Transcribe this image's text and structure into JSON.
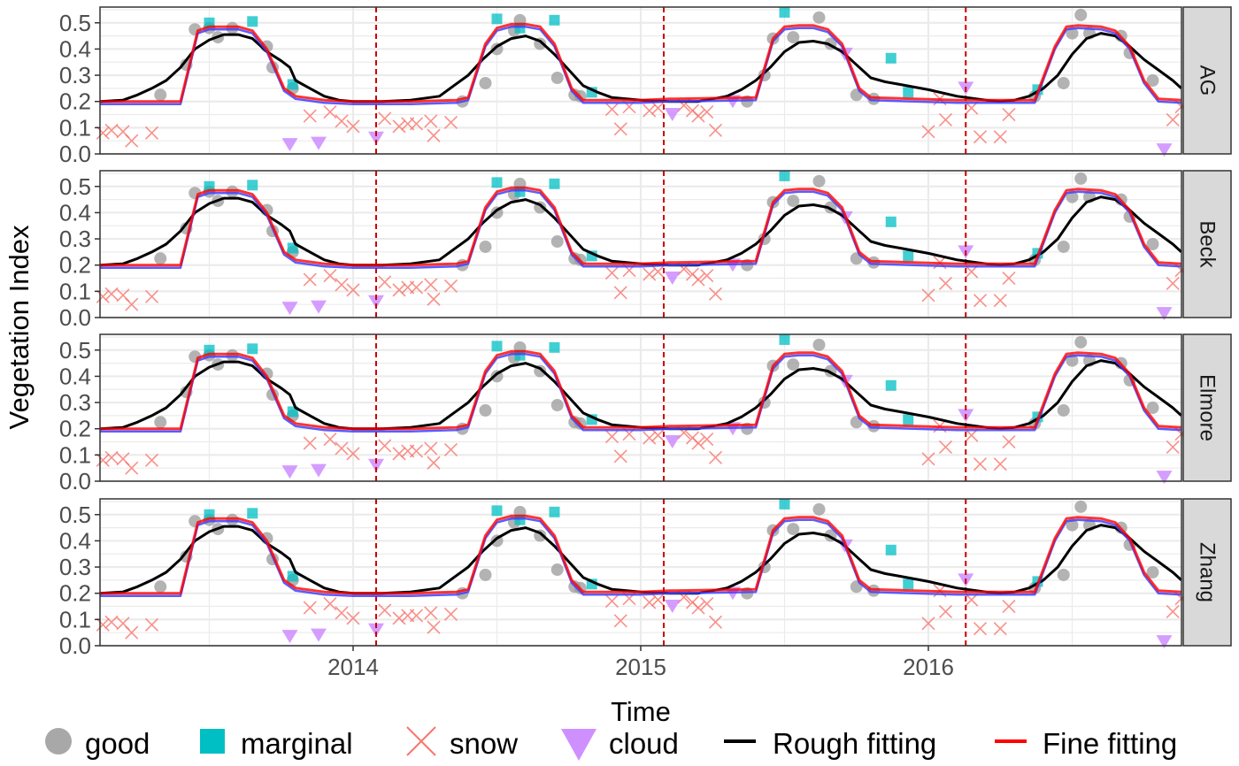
{
  "chart_data": {
    "type": "scatter",
    "xlabel": "Time",
    "ylabel": "Vegetation Index",
    "xlim": [
      2013.12,
      2016.88
    ],
    "ylim": [
      0,
      0.56
    ],
    "x_ticks": [
      2014,
      2015,
      2016
    ],
    "y_ticks": [
      "0.0",
      "0.1",
      "0.2",
      "0.3",
      "0.4",
      "0.5"
    ],
    "vlines": [
      2014.08,
      2015.08,
      2016.13
    ],
    "grid": true,
    "legend_position": "bottom",
    "panels": [
      "AG",
      "Beck",
      "Elmore",
      "Zhang"
    ],
    "colors": {
      "good": "#999999",
      "marginal": "#00BFC4",
      "snow": "#F8766D",
      "cloud": "#C77CFF",
      "rough": "#000000",
      "fine": "#FF0000",
      "fine_blue": "#4040FF",
      "vline": "#CC0000",
      "strip": "#D9D9D9"
    },
    "legend": [
      {
        "key": "good",
        "label": "good",
        "shape": "circle"
      },
      {
        "key": "marginal",
        "label": "marginal",
        "shape": "square"
      },
      {
        "key": "snow",
        "label": "snow",
        "shape": "cross"
      },
      {
        "key": "cloud",
        "label": "cloud",
        "shape": "triangle"
      },
      {
        "key": "rough",
        "label": "Rough fitting",
        "shape": "line"
      },
      {
        "key": "fine",
        "label": "Fine fitting",
        "shape": "line"
      }
    ],
    "points": {
      "good": [
        [
          2013.33,
          0.225
        ],
        [
          2013.42,
          0.34
        ],
        [
          2013.45,
          0.475
        ],
        [
          2013.5,
          0.48
        ],
        [
          2013.53,
          0.445
        ],
        [
          2013.58,
          0.48
        ],
        [
          2013.7,
          0.41
        ],
        [
          2013.72,
          0.33
        ],
        [
          2013.79,
          0.25
        ],
        [
          2014.38,
          0.2
        ],
        [
          2014.46,
          0.27
        ],
        [
          2014.5,
          0.4
        ],
        [
          2014.56,
          0.47
        ],
        [
          2014.58,
          0.51
        ],
        [
          2014.65,
          0.42
        ],
        [
          2014.71,
          0.29
        ],
        [
          2014.77,
          0.225
        ],
        [
          2014.79,
          0.22
        ],
        [
          2015.37,
          0.2
        ],
        [
          2015.43,
          0.3
        ],
        [
          2015.46,
          0.44
        ],
        [
          2015.53,
          0.445
        ],
        [
          2015.62,
          0.52
        ],
        [
          2015.66,
          0.42
        ],
        [
          2015.75,
          0.225
        ],
        [
          2015.81,
          0.21
        ],
        [
          2016.37,
          0.22
        ],
        [
          2016.47,
          0.27
        ],
        [
          2016.5,
          0.46
        ],
        [
          2016.53,
          0.53
        ],
        [
          2016.56,
          0.46
        ],
        [
          2016.67,
          0.45
        ],
        [
          2016.7,
          0.385
        ],
        [
          2016.78,
          0.28
        ]
      ],
      "marginal": [
        [
          2013.5,
          0.5
        ],
        [
          2013.65,
          0.505
        ],
        [
          2013.79,
          0.265
        ],
        [
          2014.5,
          0.515
        ],
        [
          2014.58,
          0.48
        ],
        [
          2014.7,
          0.51
        ],
        [
          2014.83,
          0.235
        ],
        [
          2015.5,
          0.54
        ],
        [
          2015.87,
          0.365
        ],
        [
          2015.93,
          0.235
        ],
        [
          2016.38,
          0.245
        ]
      ],
      "snow": [
        [
          2013.13,
          0.08
        ],
        [
          2013.16,
          0.09
        ],
        [
          2013.2,
          0.085
        ],
        [
          2013.23,
          0.05
        ],
        [
          2013.3,
          0.08
        ],
        [
          2013.85,
          0.145
        ],
        [
          2013.92,
          0.16
        ],
        [
          2013.96,
          0.125
        ],
        [
          2014.0,
          0.105
        ],
        [
          2014.11,
          0.135
        ],
        [
          2014.16,
          0.105
        ],
        [
          2014.19,
          0.115
        ],
        [
          2014.22,
          0.115
        ],
        [
          2014.27,
          0.125
        ],
        [
          2014.28,
          0.07
        ],
        [
          2014.34,
          0.12
        ],
        [
          2014.9,
          0.17
        ],
        [
          2014.93,
          0.095
        ],
        [
          2014.96,
          0.18
        ],
        [
          2015.03,
          0.165
        ],
        [
          2015.06,
          0.175
        ],
        [
          2015.15,
          0.185
        ],
        [
          2015.18,
          0.165
        ],
        [
          2015.2,
          0.145
        ],
        [
          2015.23,
          0.16
        ],
        [
          2015.26,
          0.09
        ],
        [
          2016.0,
          0.085
        ],
        [
          2016.04,
          0.21
        ],
        [
          2016.06,
          0.13
        ],
        [
          2016.15,
          0.175
        ],
        [
          2016.18,
          0.065
        ],
        [
          2016.25,
          0.065
        ],
        [
          2016.28,
          0.15
        ],
        [
          2016.85,
          0.13
        ],
        [
          2016.88,
          0.18
        ]
      ],
      "cloud": [
        [
          2013.78,
          0.04
        ],
        [
          2013.88,
          0.045
        ],
        [
          2014.08,
          0.065
        ],
        [
          2015.11,
          0.155
        ],
        [
          2015.32,
          0.205
        ],
        [
          2015.71,
          0.385
        ],
        [
          2016.13,
          0.255
        ],
        [
          2016.82,
          0.02
        ]
      ]
    },
    "series": [
      {
        "name": "Rough fitting",
        "key": "rough",
        "x": [
          2013.12,
          2013.2,
          2013.25,
          2013.3,
          2013.35,
          2013.4,
          2013.45,
          2013.5,
          2013.55,
          2013.6,
          2013.65,
          2013.7,
          2013.75,
          2013.78,
          2013.8,
          2013.85,
          2013.9,
          2013.95,
          2014.0,
          2014.1,
          2014.2,
          2014.3,
          2014.35,
          2014.4,
          2014.45,
          2014.5,
          2014.55,
          2014.6,
          2014.65,
          2014.7,
          2014.75,
          2014.8,
          2014.85,
          2014.9,
          2015.0,
          2015.1,
          2015.2,
          2015.3,
          2015.35,
          2015.4,
          2015.45,
          2015.5,
          2015.55,
          2015.6,
          2015.65,
          2015.7,
          2015.75,
          2015.8,
          2015.85,
          2015.9,
          2015.95,
          2016.0,
          2016.1,
          2016.2,
          2016.25,
          2016.3,
          2016.35,
          2016.4,
          2016.45,
          2016.5,
          2016.55,
          2016.6,
          2016.65,
          2016.7,
          2016.75,
          2016.8,
          2016.85,
          2016.88
        ],
        "y": [
          0.2,
          0.205,
          0.225,
          0.25,
          0.28,
          0.33,
          0.4,
          0.435,
          0.455,
          0.455,
          0.44,
          0.39,
          0.355,
          0.33,
          0.28,
          0.25,
          0.22,
          0.205,
          0.2,
          0.2,
          0.205,
          0.22,
          0.26,
          0.3,
          0.36,
          0.41,
          0.44,
          0.45,
          0.43,
          0.38,
          0.32,
          0.26,
          0.235,
          0.215,
          0.205,
          0.2,
          0.2,
          0.22,
          0.245,
          0.28,
          0.33,
          0.39,
          0.425,
          0.43,
          0.42,
          0.39,
          0.34,
          0.29,
          0.275,
          0.265,
          0.255,
          0.245,
          0.22,
          0.205,
          0.2,
          0.205,
          0.22,
          0.25,
          0.3,
          0.38,
          0.44,
          0.46,
          0.45,
          0.41,
          0.36,
          0.32,
          0.28,
          0.25
        ]
      },
      {
        "name": "Fine fitting",
        "key": "fine",
        "x": [
          2013.12,
          2013.4,
          2013.46,
          2013.5,
          2013.55,
          2013.6,
          2013.65,
          2013.7,
          2013.76,
          2013.8,
          2013.9,
          2014.0,
          2014.2,
          2014.36,
          2014.4,
          2014.46,
          2014.5,
          2014.55,
          2014.6,
          2014.65,
          2014.7,
          2014.76,
          2014.8,
          2015.0,
          2015.1,
          2015.4,
          2015.46,
          2015.5,
          2015.55,
          2015.6,
          2015.65,
          2015.7,
          2015.76,
          2015.8,
          2016.1,
          2016.37,
          2016.44,
          2016.48,
          2016.52,
          2016.6,
          2016.65,
          2016.7,
          2016.75,
          2016.8,
          2016.88
        ],
        "y": [
          0.2,
          0.2,
          0.47,
          0.485,
          0.485,
          0.485,
          0.47,
          0.4,
          0.25,
          0.22,
          0.205,
          0.2,
          0.2,
          0.205,
          0.215,
          0.42,
          0.48,
          0.495,
          0.495,
          0.485,
          0.42,
          0.25,
          0.205,
          0.205,
          0.21,
          0.215,
          0.44,
          0.485,
          0.49,
          0.49,
          0.475,
          0.42,
          0.25,
          0.215,
          0.205,
          0.205,
          0.41,
          0.485,
          0.49,
          0.485,
          0.47,
          0.41,
          0.28,
          0.21,
          0.205
        ]
      }
    ]
  }
}
